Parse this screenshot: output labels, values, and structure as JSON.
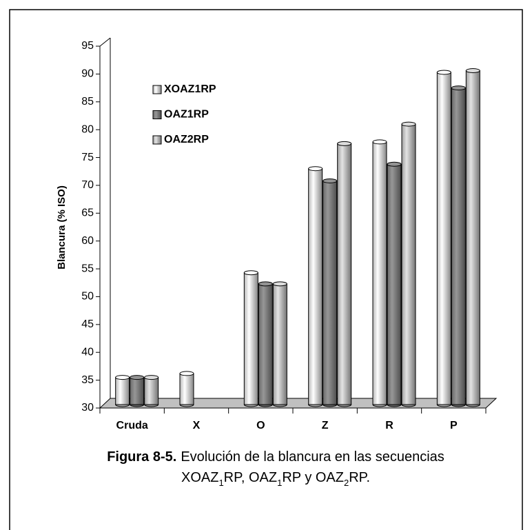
{
  "chart_data": {
    "type": "bar3d",
    "y_label": "Blancura (% ISO)",
    "categories": [
      "Cruda",
      "X",
      "O",
      "Z",
      "R",
      "P"
    ],
    "series": [
      {
        "name": "XOAZ1RP",
        "color": "#f4f4f4",
        "values": [
          35.5,
          36.2,
          54.3,
          73,
          77.8,
          90.3
        ]
      },
      {
        "name": "OAZ1RP",
        "color": "#8c8c8c",
        "values": [
          35.5,
          null,
          52.3,
          70.8,
          73.8,
          87.5
        ]
      },
      {
        "name": "OAZ2RP",
        "color": "#d2d2d2",
        "values": [
          35.5,
          null,
          52.3,
          77.5,
          81,
          90.6
        ]
      }
    ],
    "ylim": [
      30,
      95
    ],
    "yticks": [
      30,
      35,
      40,
      45,
      50,
      55,
      60,
      65,
      70,
      75,
      80,
      85,
      90,
      95
    ],
    "grid": false,
    "legend": "upper left",
    "caption": {
      "label": "Figura 8-5.",
      "line1": "Evolución de la blancura en las secuencias",
      "line2": [
        "XOAZ",
        "1",
        "RP, OAZ",
        "1",
        "RP y OAZ",
        "2",
        "RP."
      ]
    }
  }
}
